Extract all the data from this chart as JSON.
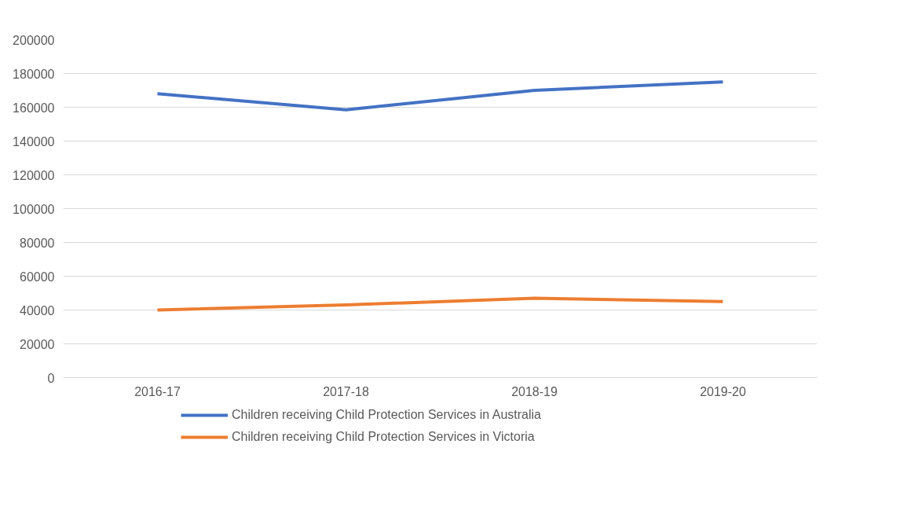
{
  "chart_data": {
    "type": "line",
    "categories": [
      "2016-17",
      "2017-18",
      "2018-19",
      "2019-20"
    ],
    "series": [
      {
        "name": "Children receiving Child Protection Services in Australia",
        "color": "#4472c4",
        "values": [
          168000,
          158500,
          170000,
          175000
        ]
      },
      {
        "name": "Children receiving Child Protection Services in Victoria",
        "color": "#ed7d31",
        "values": [
          40000,
          43000,
          47000,
          45000
        ]
      }
    ],
    "ylim": [
      0,
      200000
    ],
    "yticks": [
      0,
      20000,
      40000,
      60000,
      80000,
      100000,
      120000,
      140000,
      160000,
      180000,
      200000
    ],
    "grid": "y",
    "legend": "bottom",
    "marker": "none",
    "line_style": "solid"
  }
}
